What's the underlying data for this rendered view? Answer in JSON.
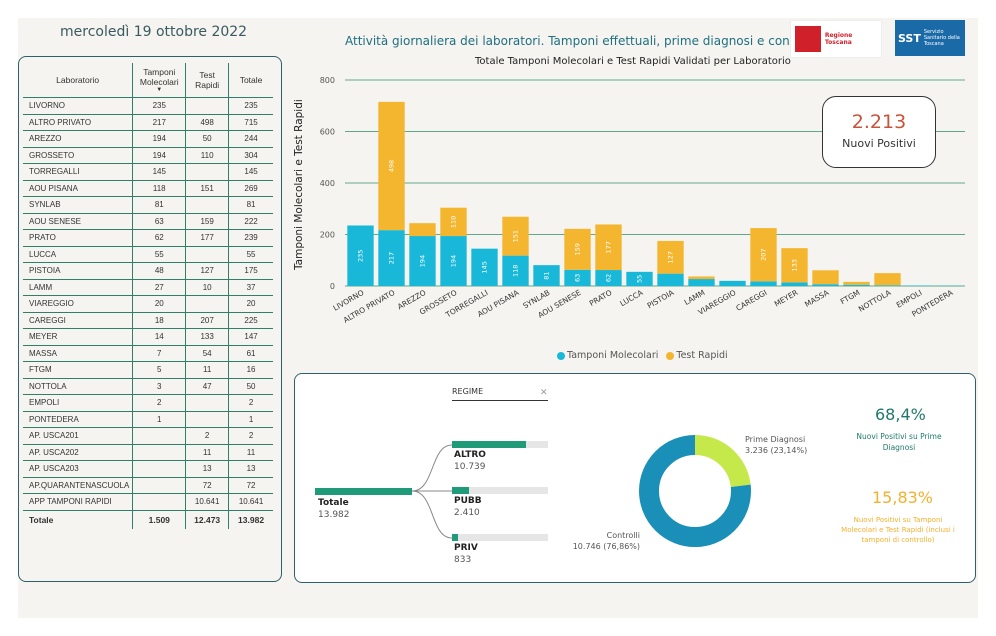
{
  "header": {
    "date": "mercoledì 19 ottobre 2022",
    "title": "Attività giornaliera dei laboratori. Tamponi effettuali, prime diagnosi e controlli",
    "logo_rt": "Regione Toscana",
    "logo_sst_mark": "SST",
    "logo_sst_text": "Servizio Sanitario della Toscana"
  },
  "table": {
    "headers": {
      "lab": "Laboratorio",
      "mol": "Tamponi Molecolari",
      "rap": "Test Rapidi",
      "tot": "Totale"
    },
    "rows": [
      {
        "name": "LIVORNO",
        "mol": "235",
        "rap": "",
        "tot": "235"
      },
      {
        "name": "ALTRO PRIVATO",
        "mol": "217",
        "rap": "498",
        "tot": "715"
      },
      {
        "name": "AREZZO",
        "mol": "194",
        "rap": "50",
        "tot": "244"
      },
      {
        "name": "GROSSETO",
        "mol": "194",
        "rap": "110",
        "tot": "304"
      },
      {
        "name": "TORREGALLI",
        "mol": "145",
        "rap": "",
        "tot": "145"
      },
      {
        "name": "AOU PISANA",
        "mol": "118",
        "rap": "151",
        "tot": "269"
      },
      {
        "name": "SYNLAB",
        "mol": "81",
        "rap": "",
        "tot": "81"
      },
      {
        "name": "AOU SENESE",
        "mol": "63",
        "rap": "159",
        "tot": "222"
      },
      {
        "name": "PRATO",
        "mol": "62",
        "rap": "177",
        "tot": "239"
      },
      {
        "name": "LUCCA",
        "mol": "55",
        "rap": "",
        "tot": "55"
      },
      {
        "name": "PISTOIA",
        "mol": "48",
        "rap": "127",
        "tot": "175"
      },
      {
        "name": "LAMM",
        "mol": "27",
        "rap": "10",
        "tot": "37"
      },
      {
        "name": "VIAREGGIO",
        "mol": "20",
        "rap": "",
        "tot": "20"
      },
      {
        "name": "CAREGGI",
        "mol": "18",
        "rap": "207",
        "tot": "225"
      },
      {
        "name": "MEYER",
        "mol": "14",
        "rap": "133",
        "tot": "147"
      },
      {
        "name": "MASSA",
        "mol": "7",
        "rap": "54",
        "tot": "61"
      },
      {
        "name": "FTGM",
        "mol": "5",
        "rap": "11",
        "tot": "16"
      },
      {
        "name": "NOTTOLA",
        "mol": "3",
        "rap": "47",
        "tot": "50"
      },
      {
        "name": "EMPOLI",
        "mol": "2",
        "rap": "",
        "tot": "2"
      },
      {
        "name": "PONTEDERA",
        "mol": "1",
        "rap": "",
        "tot": "1"
      },
      {
        "name": "AP. USCA201",
        "mol": "",
        "rap": "2",
        "tot": "2"
      },
      {
        "name": "AP. USCA202",
        "mol": "",
        "rap": "11",
        "tot": "11"
      },
      {
        "name": "AP. USCA203",
        "mol": "",
        "rap": "13",
        "tot": "13"
      },
      {
        "name": "AP.QUARANTENASCUOLA",
        "mol": "",
        "rap": "72",
        "tot": "72"
      },
      {
        "name": "APP TAMPONI RAPIDI",
        "mol": "",
        "rap": "10.641",
        "tot": "10.641"
      }
    ],
    "total": {
      "name": "Totale",
      "mol": "1.509",
      "rap": "12.473",
      "tot": "13.982"
    }
  },
  "chart_data": {
    "type": "bar",
    "title": "Totale Tamponi Molecolari e Test Rapidi Validati per Laboratorio",
    "ylabel": "Tamponi Molecolari e Test Rapidi",
    "xlabel": "",
    "ylim": [
      0,
      800
    ],
    "yticks": [
      0,
      200,
      400,
      600,
      800
    ],
    "stacked": true,
    "categories": [
      "LIVORNO",
      "ALTRO PRIVATO",
      "AREZZO",
      "GROSSETO",
      "TORREGALLI",
      "AOU PISANA",
      "SYNLAB",
      "AOU SENESE",
      "PRATO",
      "LUCCA",
      "PISTOIA",
      "LAMM",
      "VIAREGGIO",
      "CAREGGI",
      "MEYER",
      "MASSA",
      "FTGM",
      "NOTTOLA",
      "EMPOLI",
      "PONTEDERA"
    ],
    "series": [
      {
        "name": "Tamponi Molecolari",
        "color": "#1ab8d8",
        "values": [
          235,
          217,
          194,
          194,
          145,
          118,
          81,
          63,
          62,
          55,
          48,
          27,
          20,
          18,
          14,
          7,
          5,
          3,
          2,
          1
        ]
      },
      {
        "name": "Test Rapidi",
        "color": "#f5b62f",
        "values": [
          0,
          498,
          50,
          110,
          0,
          151,
          0,
          159,
          177,
          0,
          127,
          10,
          0,
          207,
          133,
          54,
          11,
          47,
          0,
          0
        ]
      }
    ],
    "legend_position": "bottom-center",
    "grid": true
  },
  "kpi": {
    "value": "2.213",
    "label": "Nuovi Positivi"
  },
  "decomposition": {
    "header": "REGIME",
    "root": {
      "label": "Totale",
      "value": "13.982"
    },
    "items": [
      {
        "label": "ALTRO",
        "value": "10.739",
        "fraction": 0.768
      },
      {
        "label": "PUBB",
        "value": "2.410",
        "fraction": 0.172
      },
      {
        "label": "PRIV",
        "value": "833",
        "fraction": 0.06
      }
    ]
  },
  "donut": {
    "slices": [
      {
        "label": "Prime Diagnosi",
        "value": "3.236 (23,14%)",
        "fraction": 0.2314,
        "color": "#c5e84a"
      },
      {
        "label": "Controlli",
        "value": "10.746 (76,86%)",
        "fraction": 0.7686,
        "color": "#1a8fb8"
      }
    ]
  },
  "stats": {
    "green_pct": "68,4%",
    "green_label": "Nuovi Positivi su Prime Diagnosi",
    "orange_pct": "15,83%",
    "orange_label": "Nuovi Positivi su Tamponi Molecolari e Test Rapidi (inclusi i tamponi di controllo)"
  }
}
